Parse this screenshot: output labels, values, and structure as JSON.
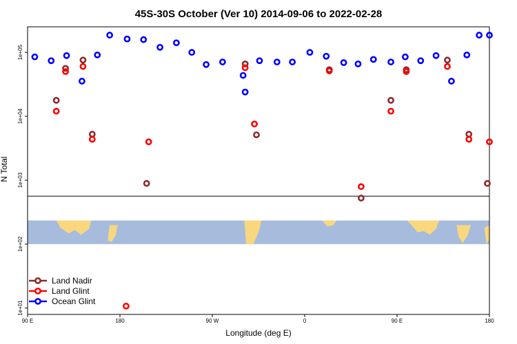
{
  "chart_data": {
    "type": "scatter",
    "title": "45S-30S October (Ver 10)   2014-09-06 to 2022-02-28",
    "xlabel": "Longitude (deg E)",
    "ylabel": "N Total",
    "y_scale": "log",
    "xlim": [
      90,
      540
    ],
    "ylim_log10": [
      0.9,
      5.4
    ],
    "x_ticks": [
      {
        "value": 90,
        "label": "90 E"
      },
      {
        "value": 180,
        "label": "180"
      },
      {
        "value": 270,
        "label": "90 W"
      },
      {
        "value": 360,
        "label": "0"
      },
      {
        "value": 450,
        "label": "90 E"
      },
      {
        "value": 540,
        "label": "180"
      }
    ],
    "y_ticks": [
      {
        "log10": 1,
        "label": "1e+01"
      },
      {
        "log10": 2,
        "label": "1e+02"
      },
      {
        "log10": 3,
        "label": "1e+03"
      },
      {
        "log10": 4,
        "label": "1e+04"
      },
      {
        "log10": 5,
        "label": "1e+05"
      }
    ],
    "map_band_log10": [
      2.0,
      2.37
    ],
    "separator_log10": 2.75,
    "series": [
      {
        "name": "Land Nadir",
        "color": "#8b2a2a",
        "x": [
          118,
          127,
          144,
          153,
          206,
          302,
          313,
          384,
          415,
          444,
          459,
          499,
          520,
          538
        ],
        "log10_y": [
          4.25,
          4.75,
          4.88,
          3.72,
          2.95,
          4.82,
          3.71,
          4.73,
          2.72,
          4.25,
          4.73,
          4.88,
          3.72,
          2.95
        ]
      },
      {
        "name": "Land Glint",
        "color": "#ff0000",
        "x": [
          118,
          127,
          144,
          153,
          208,
          302,
          311,
          384,
          415,
          444,
          459,
          499,
          520,
          540,
          186
        ],
        "log10_y": [
          4.08,
          4.7,
          4.78,
          3.64,
          3.6,
          4.76,
          3.88,
          4.71,
          2.9,
          4.08,
          4.7,
          4.78,
          3.64,
          3.6,
          1.03
        ]
      },
      {
        "name": "Ocean Glint",
        "color": "#0000ff",
        "x": [
          97,
          113,
          128,
          143,
          158,
          170,
          187,
          203,
          219,
          235,
          250,
          264,
          280,
          300,
          302,
          316,
          333,
          348,
          365,
          381,
          398,
          412,
          427,
          444,
          458,
          473,
          488,
          503,
          518,
          530,
          540
        ],
        "log10_y": [
          4.93,
          4.87,
          4.95,
          4.55,
          4.96,
          5.27,
          5.21,
          5.2,
          5.08,
          5.15,
          5.0,
          4.81,
          4.85,
          4.64,
          4.38,
          4.87,
          4.85,
          4.85,
          5.0,
          4.94,
          4.84,
          4.82,
          4.89,
          4.85,
          4.93,
          4.87,
          4.95,
          4.55,
          4.96,
          5.27,
          5.27
        ]
      }
    ],
    "legend": {
      "placement": "bottom-left",
      "items": [
        {
          "label": "Land Nadir",
          "color": "#8b2a2a"
        },
        {
          "label": "Land Glint",
          "color": "#ff0000"
        },
        {
          "label": "Ocean Glint",
          "color": "#0000ff"
        }
      ]
    },
    "map_colors": {
      "ocean": "#a7bcdc",
      "land": "#f8d77f"
    }
  }
}
